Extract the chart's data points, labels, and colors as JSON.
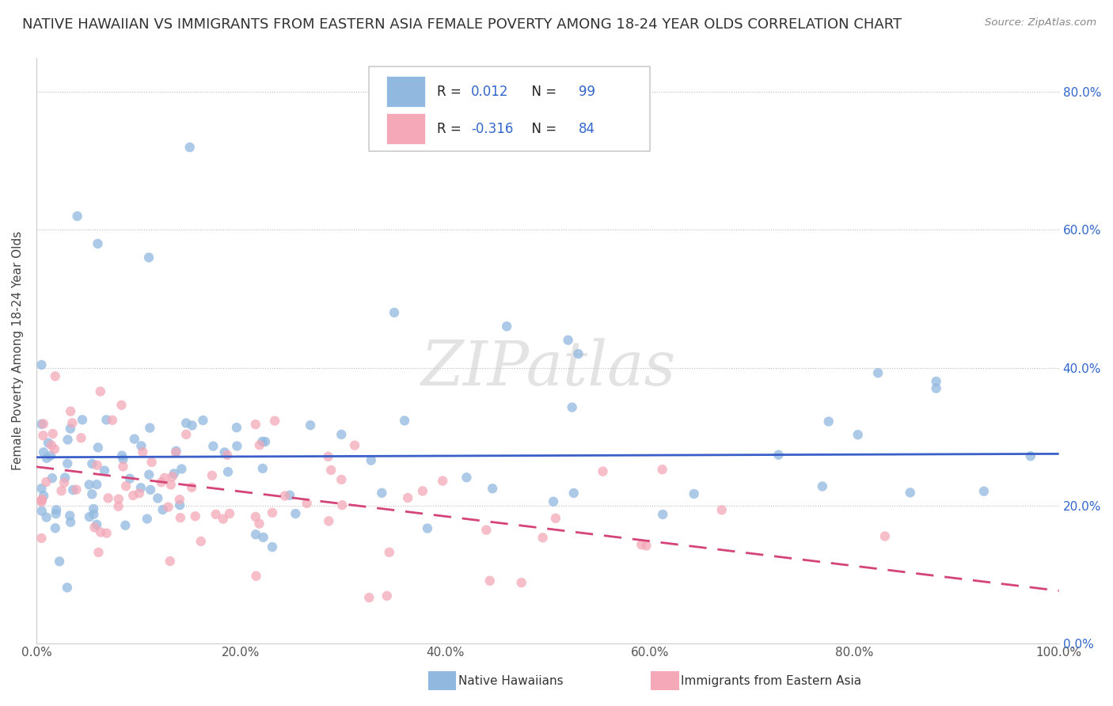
{
  "title": "NATIVE HAWAIIAN VS IMMIGRANTS FROM EASTERN ASIA FEMALE POVERTY AMONG 18-24 YEAR OLDS CORRELATION CHART",
  "source": "Source: ZipAtlas.com",
  "ylabel": "Female Poverty Among 18-24 Year Olds",
  "xlim": [
    0,
    1.0
  ],
  "ylim": [
    0,
    0.85
  ],
  "xtick_vals": [
    0.0,
    0.2,
    0.4,
    0.6,
    0.8,
    1.0
  ],
  "xtick_labels": [
    "0.0%",
    "20.0%",
    "40.0%",
    "60.0%",
    "80.0%",
    "100.0%"
  ],
  "ytick_vals": [
    0.0,
    0.2,
    0.4,
    0.6,
    0.8
  ],
  "ytick_labels": [
    "0.0%",
    "20.0%",
    "40.0%",
    "60.0%",
    "80.0%"
  ],
  "series1_label": "Native Hawaiians",
  "series2_label": "Immigrants from Eastern Asia",
  "series1_color": "#91b9e0",
  "series2_color": "#f4a8b8",
  "series1_R": 0.012,
  "series1_N": 99,
  "series2_R": -0.316,
  "series2_N": 84,
  "legend_R_color": "#3366cc",
  "marker_size": 80,
  "trend_line1_color": "#3a5fc8",
  "trend_line2_color": "#d44478",
  "watermark": "ZIPatlas",
  "background_color": "#ffffff",
  "grid_color": "#bbbbbb",
  "title_fontsize": 13,
  "axis_label_fontsize": 11,
  "tick_fontsize": 11,
  "seed": 42
}
